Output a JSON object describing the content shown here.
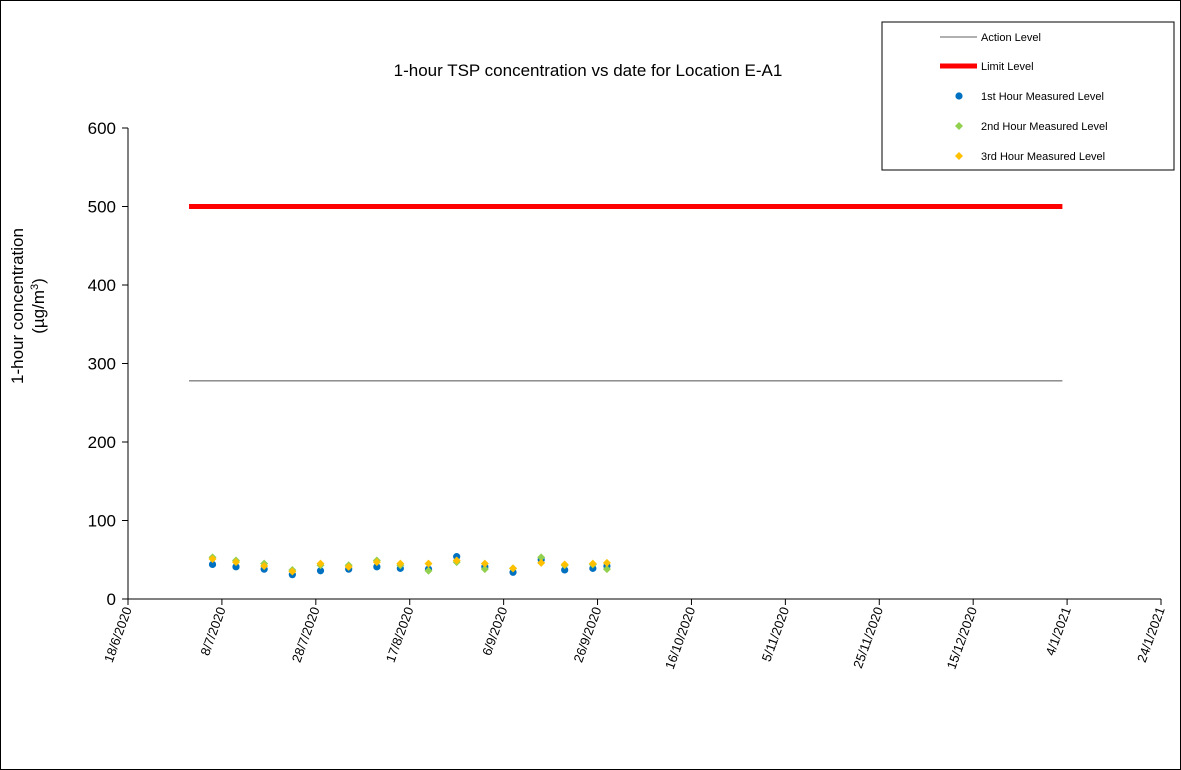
{
  "chart_data": {
    "type": "scatter",
    "title": "1-hour TSP concentration vs date for Location E-A1",
    "ylabel_line1": "1-hour concentration",
    "ylabel_line2_prefix": "(µg/m",
    "ylabel_line2_sup": "3",
    "ylabel_line2_suffix": ")",
    "ylim": [
      0,
      600
    ],
    "yticks": [
      0,
      100,
      200,
      300,
      400,
      500,
      600
    ],
    "xlim": [
      "2020-06-18",
      "2021-01-24"
    ],
    "xticks": [
      "18/6/2020",
      "8/7/2020",
      "28/7/2020",
      "17/8/2020",
      "6/9/2020",
      "26/9/2020",
      "16/10/2020",
      "5/11/2020",
      "25/11/2020",
      "15/12/2020",
      "4/1/2021",
      "24/1/2021"
    ],
    "xtick_dates": [
      "2020-06-18",
      "2020-07-08",
      "2020-07-28",
      "2020-08-17",
      "2020-09-06",
      "2020-09-26",
      "2020-10-16",
      "2020-11-05",
      "2020-11-25",
      "2020-12-15",
      "2021-01-04",
      "2021-01-24"
    ],
    "legend_position": "top-right",
    "series": [
      {
        "name": "Action Level",
        "kind": "line",
        "color": "#808080",
        "x": [
          "2020-07-01",
          "2021-01-03"
        ],
        "y": [
          278,
          278
        ]
      },
      {
        "name": "Limit Level",
        "kind": "line",
        "color": "#ff0000",
        "x": [
          "2020-07-01",
          "2021-01-03"
        ],
        "y": [
          500,
          500
        ]
      },
      {
        "name": "1st Hour Measured Level",
        "kind": "scatter",
        "marker": "circle",
        "color": "#0070c0",
        "x": [
          "2020-07-06",
          "2020-07-11",
          "2020-07-17",
          "2020-07-23",
          "2020-07-29",
          "2020-08-04",
          "2020-08-10",
          "2020-08-15",
          "2020-08-21",
          "2020-08-27",
          "2020-09-02",
          "2020-09-08",
          "2020-09-14",
          "2020-09-19",
          "2020-09-25",
          "2020-09-28"
        ],
        "y": [
          44,
          41,
          38,
          31,
          36,
          38,
          41,
          39,
          38,
          54,
          41,
          34,
          50,
          37,
          39,
          42
        ]
      },
      {
        "name": "2nd Hour Measured Level",
        "kind": "scatter",
        "marker": "diamond",
        "color": "#92d050",
        "x": [
          "2020-07-06",
          "2020-07-11",
          "2020-07-17",
          "2020-07-23",
          "2020-07-29",
          "2020-08-04",
          "2020-08-10",
          "2020-08-15",
          "2020-08-21",
          "2020-08-27",
          "2020-09-02",
          "2020-09-08",
          "2020-09-14",
          "2020-09-19",
          "2020-09-25",
          "2020-09-28"
        ],
        "y": [
          53,
          49,
          45,
          37,
          43,
          43,
          49,
          43,
          36,
          47,
          38,
          39,
          53,
          43,
          44,
          38
        ]
      },
      {
        "name": "3rd Hour Measured Level",
        "kind": "scatter",
        "marker": "diamond",
        "color": "#ffc000",
        "x": [
          "2020-07-06",
          "2020-07-11",
          "2020-07-17",
          "2020-07-23",
          "2020-07-29",
          "2020-08-04",
          "2020-08-10",
          "2020-08-15",
          "2020-08-21",
          "2020-08-27",
          "2020-09-02",
          "2020-09-08",
          "2020-09-14",
          "2020-09-19",
          "2020-09-25",
          "2020-09-28"
        ],
        "y": [
          51,
          47,
          42,
          35,
          45,
          41,
          47,
          45,
          45,
          49,
          45,
          39,
          46,
          44,
          45,
          46
        ]
      }
    ]
  }
}
